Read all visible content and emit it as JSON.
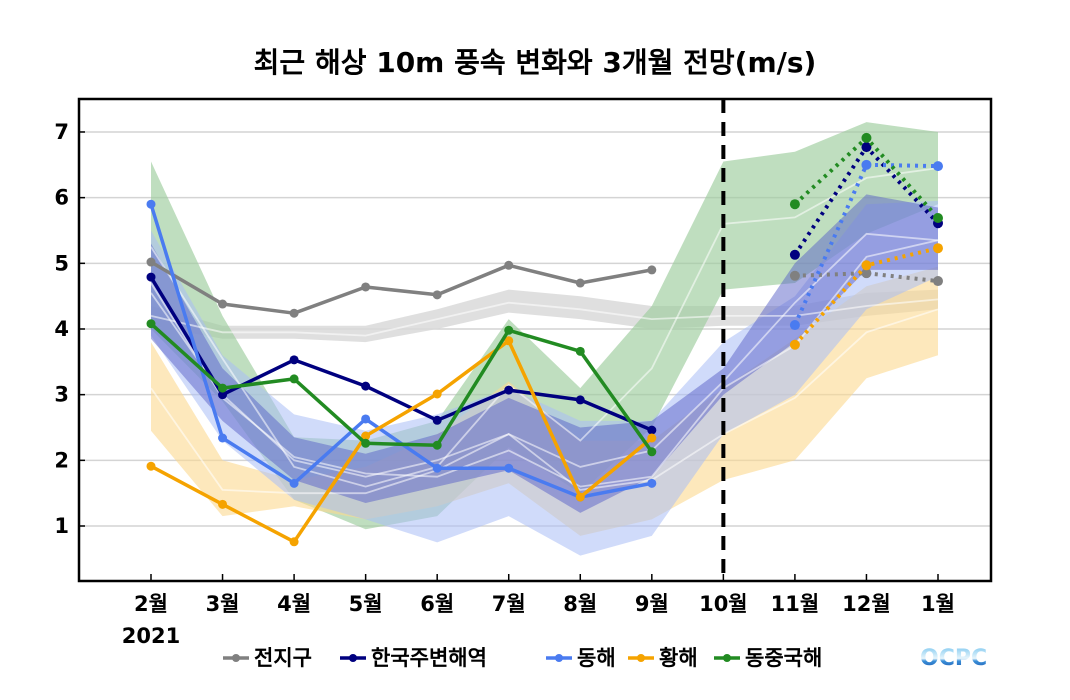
{
  "chart_data": {
    "type": "line",
    "title": "최근 해상 10m 풍속 변화와 3개월 전망(m/s)",
    "xlabel": "",
    "ylabel": "",
    "categories": [
      "2월",
      "3월",
      "4월",
      "5월",
      "6월",
      "7월",
      "8월",
      "9월",
      "10월",
      "11월",
      "12월",
      "1월"
    ],
    "year_label": "2021",
    "yticks": [
      1,
      2,
      3,
      4,
      5,
      6,
      7
    ],
    "ylim": [
      0.15,
      7.5
    ],
    "grid": true,
    "forecast_divider_after": "10월",
    "legend_position": "bottom",
    "series": [
      {
        "name": "전지구",
        "color": "#808080",
        "band_color": "#d9d9d9",
        "observed": [
          5.02,
          4.38,
          4.24,
          4.64,
          4.52,
          4.97,
          4.7,
          4.9,
          null,
          null,
          null,
          null
        ],
        "forecast": [
          null,
          null,
          null,
          null,
          null,
          null,
          null,
          null,
          null,
          4.81,
          4.85,
          4.73
        ],
        "band_high": [
          4.35,
          4.05,
          4.05,
          4.05,
          4.3,
          4.6,
          4.5,
          4.35,
          4.35,
          4.35,
          4.55,
          4.6
        ],
        "band_low": [
          4.05,
          3.85,
          3.85,
          3.8,
          4.0,
          4.25,
          4.15,
          4.0,
          4.05,
          4.05,
          4.2,
          4.3
        ],
        "band_mid": [
          4.2,
          3.95,
          3.95,
          3.9,
          4.15,
          4.4,
          4.3,
          4.15,
          4.2,
          4.2,
          4.35,
          4.45
        ]
      },
      {
        "name": "한국주변해역",
        "color": "#00007f",
        "band_color": "#5a62c8",
        "observed": [
          4.79,
          3.0,
          3.53,
          3.13,
          2.61,
          3.07,
          2.92,
          2.46,
          null,
          null,
          null,
          null
        ],
        "forecast": [
          null,
          null,
          null,
          null,
          null,
          null,
          null,
          null,
          null,
          5.13,
          6.77,
          5.61
        ],
        "band_high": [
          5.3,
          3.4,
          2.35,
          2.1,
          2.4,
          2.95,
          2.5,
          2.6,
          3.4,
          5.0,
          6.05,
          5.85
        ],
        "band_low": [
          3.85,
          2.6,
          1.7,
          1.35,
          1.6,
          1.85,
          1.2,
          1.75,
          3.0,
          3.8,
          4.9,
          4.9
        ],
        "band_mid": [
          4.55,
          3.0,
          2.0,
          1.75,
          2.0,
          2.4,
          1.9,
          2.15,
          3.2,
          4.4,
          5.45,
          5.35
        ]
      },
      {
        "name": "동해",
        "color": "#4a7bf0",
        "band_color": "#a9bdf5",
        "observed": [
          5.9,
          2.34,
          1.65,
          2.63,
          1.88,
          1.88,
          1.44,
          1.65,
          null,
          null,
          null,
          null
        ],
        "forecast": [
          null,
          null,
          null,
          null,
          null,
          null,
          null,
          null,
          null,
          4.06,
          6.5,
          6.48
        ],
        "band_high": [
          5.5,
          3.6,
          2.7,
          2.45,
          2.7,
          3.1,
          2.6,
          2.6,
          3.8,
          4.5,
          5.9,
          5.95
        ],
        "band_low": [
          3.9,
          2.3,
          1.4,
          1.1,
          0.75,
          1.15,
          0.55,
          0.85,
          2.4,
          3.0,
          4.3,
          4.8
        ],
        "band_mid": [
          4.7,
          2.95,
          2.05,
          1.8,
          1.75,
          2.15,
          1.6,
          1.75,
          3.1,
          3.75,
          5.1,
          5.35
        ]
      },
      {
        "name": "황해",
        "color": "#f5a300",
        "band_color": "#fcd98f",
        "observed": [
          1.91,
          1.33,
          0.76,
          2.37,
          3.01,
          3.82,
          1.44,
          2.34,
          null,
          null,
          null,
          null
        ],
        "forecast": [
          null,
          null,
          null,
          null,
          null,
          null,
          null,
          null,
          null,
          3.76,
          4.97,
          5.23
        ],
        "band_high": [
          3.8,
          2.0,
          1.7,
          1.9,
          2.4,
          3.2,
          2.3,
          2.3,
          3.1,
          3.85,
          4.65,
          4.95
        ],
        "band_low": [
          2.45,
          1.15,
          1.3,
          1.1,
          1.3,
          1.65,
          0.85,
          1.1,
          1.7,
          2.0,
          3.25,
          3.6
        ],
        "band_mid": [
          3.1,
          1.55,
          1.5,
          1.5,
          1.85,
          2.4,
          1.55,
          1.7,
          2.4,
          2.95,
          3.95,
          4.3
        ]
      },
      {
        "name": "동중국해",
        "color": "#228b22",
        "band_color": "#9ccc9c",
        "observed": [
          4.08,
          3.1,
          3.24,
          2.26,
          2.23,
          3.98,
          3.66,
          2.13,
          null,
          null,
          null,
          null
        ],
        "forecast": [
          null,
          null,
          null,
          null,
          null,
          null,
          null,
          null,
          null,
          5.9,
          6.91,
          5.69
        ],
        "band_high": [
          6.55,
          4.2,
          2.35,
          2.3,
          2.6,
          4.15,
          3.1,
          4.35,
          6.55,
          6.7,
          7.15,
          7.0
        ],
        "band_low": [
          4.0,
          2.9,
          1.4,
          0.95,
          1.15,
          2.2,
          1.5,
          2.5,
          4.6,
          4.7,
          5.45,
          5.9
        ],
        "band_mid": [
          5.25,
          3.55,
          1.9,
          1.6,
          1.9,
          3.15,
          2.3,
          3.4,
          5.6,
          5.7,
          6.3,
          6.45
        ]
      }
    ]
  },
  "logo": {
    "text": "OCPC",
    "color_top": "#7fc8f0",
    "color_bottom": "#1a4fa8"
  }
}
